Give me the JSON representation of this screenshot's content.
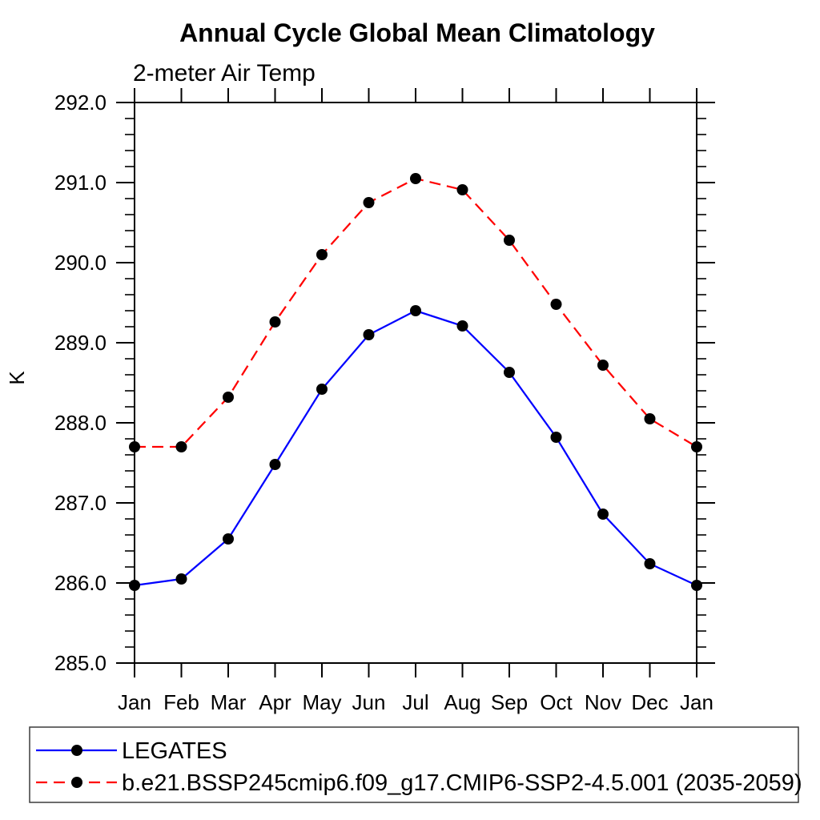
{
  "header": {
    "title": "Annual Cycle Global Mean Climatology",
    "subtitle": "2-meter Air Temp"
  },
  "chart_data": {
    "type": "line",
    "title": "Annual Cycle Global Mean Climatology",
    "subtitle": "2-meter Air Temp",
    "xlabel": "",
    "ylabel": "K",
    "categories": [
      "Jan",
      "Feb",
      "Mar",
      "Apr",
      "May",
      "Jun",
      "Jul",
      "Aug",
      "Sep",
      "Oct",
      "Nov",
      "Dec",
      "Jan"
    ],
    "series": [
      {
        "name": "LEGATES",
        "color": "#0000ff",
        "line_style": "solid",
        "marker": "filled-circle",
        "marker_color": "#000000",
        "values": [
          285.97,
          286.05,
          286.55,
          287.48,
          288.42,
          289.1,
          289.4,
          289.21,
          288.63,
          287.82,
          286.86,
          286.24,
          285.97
        ]
      },
      {
        "name": "b.e21.BSSP245cmip6.f09_g17.CMIP6-SSP2-4.5.001 (2035-2059)",
        "color": "#ff0000",
        "line_style": "dashed",
        "marker": "filled-circle",
        "marker_color": "#000000",
        "values": [
          287.7,
          287.7,
          288.32,
          289.26,
          290.1,
          290.75,
          291.05,
          290.91,
          290.28,
          289.48,
          288.72,
          288.05,
          287.7
        ]
      }
    ],
    "ylim": [
      285.0,
      292.0
    ],
    "ytick_major": 1.0,
    "ytick_minor": 0.2,
    "ytick_decimals": 1,
    "grid": false,
    "axis_color": "#000000",
    "frame_color": "#000000",
    "legend_position": "bottom",
    "legend_border_color": "#3c3c3c"
  }
}
